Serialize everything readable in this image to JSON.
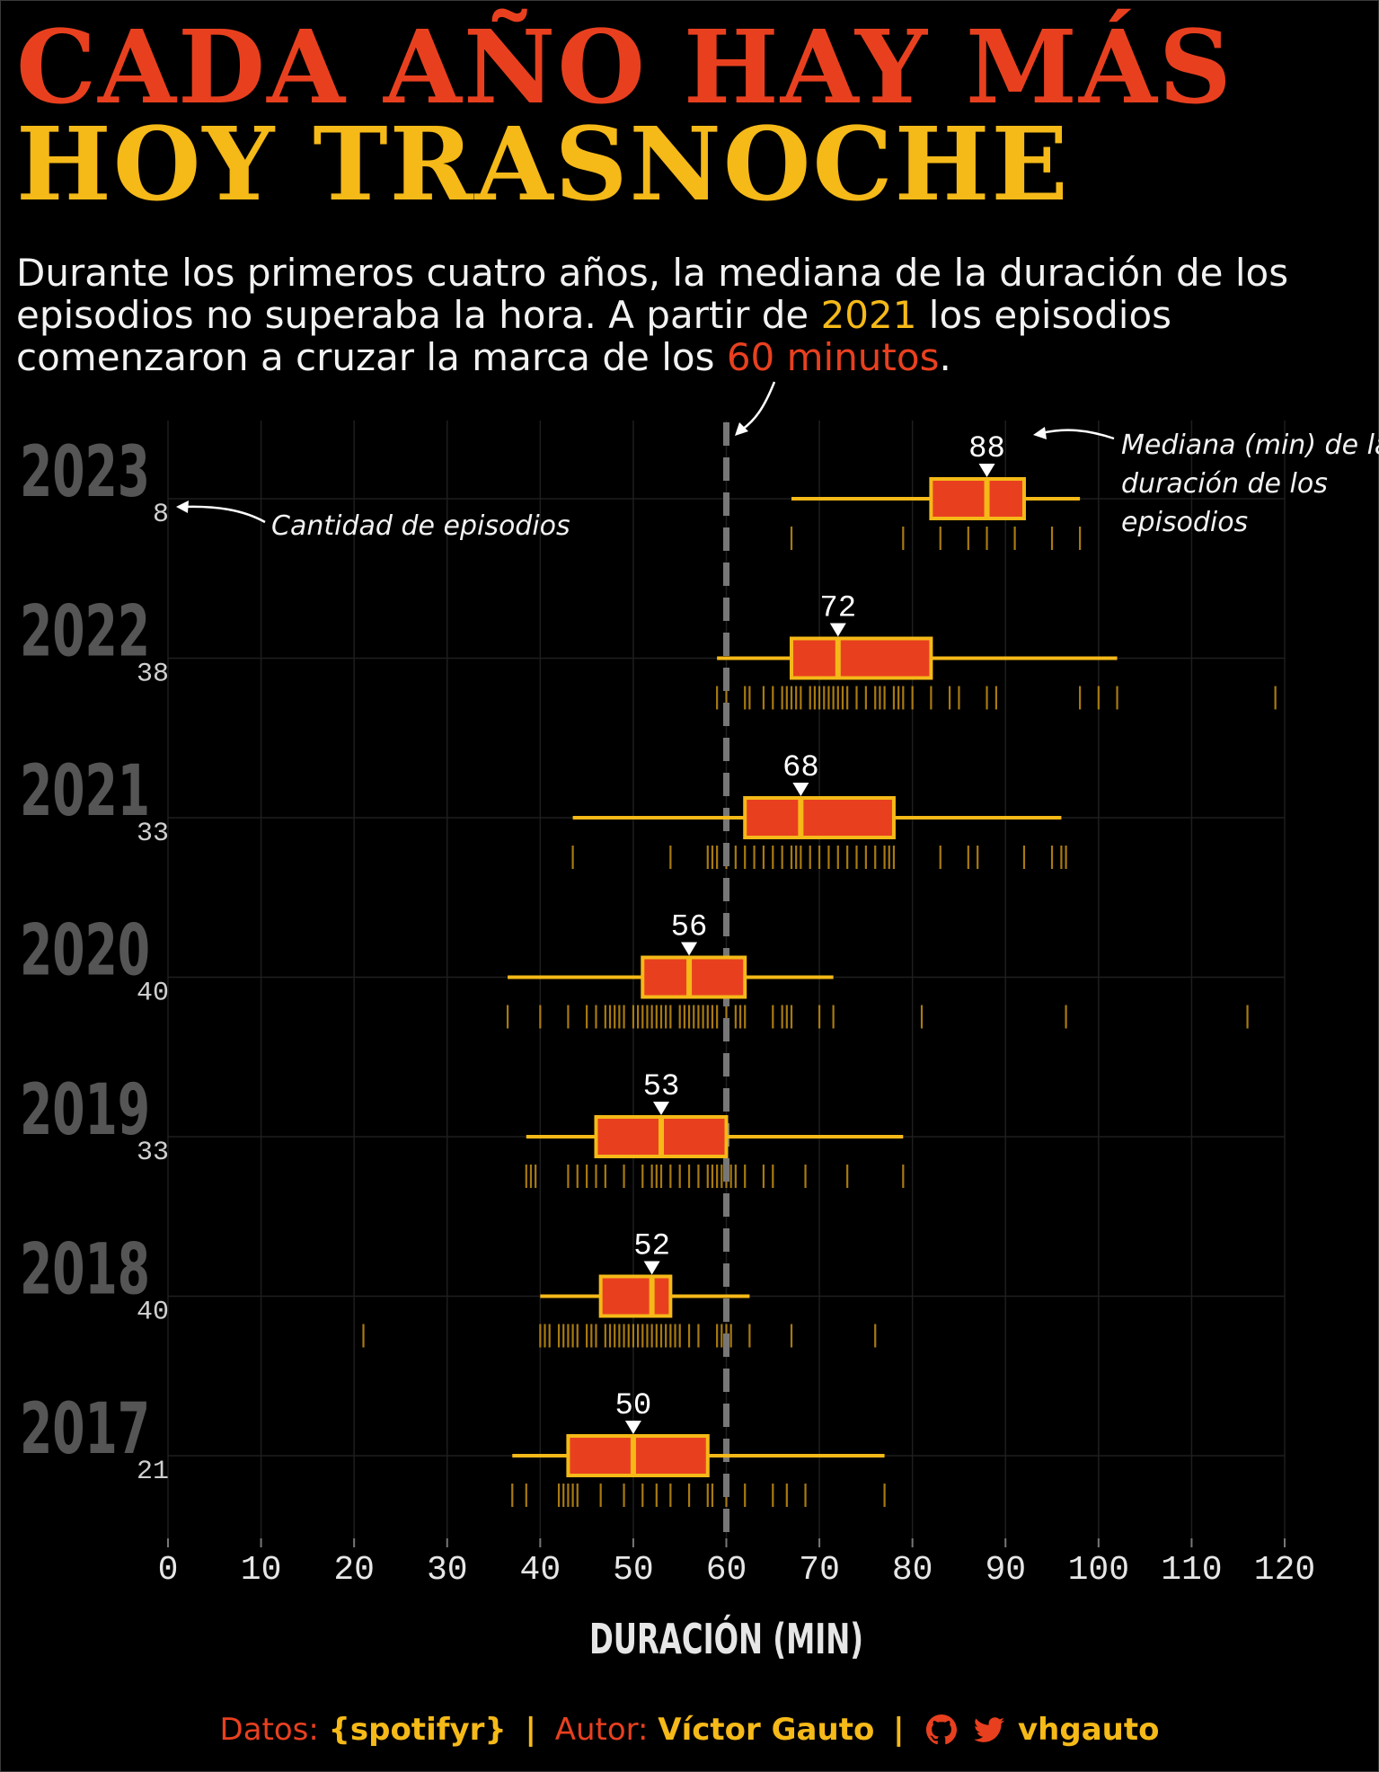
{
  "title": {
    "line1": "CADA AÑO HAY MÁS",
    "line2": "HOY TRASNOCHE",
    "line1_color": "#e8401f",
    "line2_color": "#f5b918"
  },
  "subtitle": {
    "part1": "Durante los primeros cuatro años, la mediana de la duración de los episodios no superaba la hora. A partir de ",
    "highlight_year": "2021",
    "part2": " los episodios comenzaron a cruzar la marca de los ",
    "highlight_minutes": "60 minutos",
    "part3": "."
  },
  "annotations": {
    "count": "Cantidad de episodios",
    "median_line1": "Mediana (min) de la",
    "median_line2": "duración de los",
    "median_line3": "episodios"
  },
  "caption": {
    "data_label": "Datos:",
    "data_value": "{spotifyr}",
    "author_label": "Autor:",
    "author_value": "Víctor Gauto",
    "handle": "vhgauto",
    "separator": "|",
    "icons": [
      "github-icon",
      "twitter-icon"
    ]
  },
  "colors": {
    "background": "#000000",
    "box_fill": "#e8401f",
    "box_stroke": "#f5b918",
    "year_label": "#555555",
    "reference_line": "#777777"
  },
  "chart_data": {
    "type": "boxplot",
    "xlabel": "DURACIÓN (MIN)",
    "xlim": [
      0,
      120
    ],
    "xticks": [
      "0",
      "10",
      "20",
      "30",
      "40",
      "50",
      "60",
      "70",
      "80",
      "90",
      "100",
      "110",
      "120"
    ],
    "reference_line_x": 60,
    "grid": true,
    "series": [
      {
        "year": "2023",
        "count": "8",
        "median": 88,
        "median_label": "88",
        "q1": 82,
        "q3": 92,
        "whisker_low": 67,
        "whisker_high": 98,
        "episodes": [
          67,
          79,
          83,
          86,
          88,
          91,
          95,
          98
        ]
      },
      {
        "year": "2022",
        "count": "38",
        "median": 72,
        "median_label": "72",
        "q1": 67,
        "q3": 82,
        "whisker_low": 59,
        "whisker_high": 102,
        "episodes": [
          59,
          60,
          62,
          62.5,
          64,
          65,
          66,
          66.5,
          67,
          67.5,
          68,
          69,
          69.5,
          70,
          70.5,
          71,
          71.5,
          72,
          72.5,
          73,
          74,
          75,
          76,
          76.5,
          77,
          78,
          78.5,
          79,
          80,
          82,
          84,
          85,
          88,
          89,
          98,
          100,
          102,
          119
        ]
      },
      {
        "year": "2021",
        "count": "33",
        "median": 68,
        "median_label": "68",
        "q1": 62,
        "q3": 78,
        "whisker_low": 43.5,
        "whisker_high": 96,
        "episodes": [
          43.5,
          54,
          58,
          58.5,
          59,
          60,
          61,
          62,
          63,
          64,
          65,
          66,
          67,
          67.5,
          68,
          69,
          70,
          71,
          72,
          73,
          74,
          75,
          76,
          77,
          77.5,
          78,
          83,
          86,
          87,
          92,
          95,
          96,
          96.5
        ]
      },
      {
        "year": "2020",
        "count": "40",
        "median": 56,
        "median_label": "56",
        "q1": 51,
        "q3": 62,
        "whisker_low": 36.5,
        "whisker_high": 71.5,
        "episodes": [
          36.5,
          40,
          43,
          45,
          46,
          47,
          47.5,
          48,
          48.5,
          49,
          50,
          50.5,
          51,
          51.5,
          52,
          52.5,
          53,
          53.5,
          54,
          55,
          55.5,
          56,
          56.5,
          57,
          57.5,
          58,
          58.5,
          59,
          60,
          61,
          61.5,
          62,
          65,
          66,
          66.5,
          67,
          70,
          71.5,
          81,
          96.5,
          116
        ]
      },
      {
        "year": "2019",
        "count": "33",
        "median": 53,
        "median_label": "53",
        "q1": 46,
        "q3": 60,
        "whisker_low": 38.5,
        "whisker_high": 79,
        "episodes": [
          38.5,
          39,
          39.5,
          43,
          44,
          45,
          46,
          47,
          49,
          51,
          52,
          52.5,
          53,
          54,
          55,
          56,
          57,
          58,
          58.5,
          59,
          59.5,
          60,
          60.5,
          61,
          62,
          64,
          65,
          68.5,
          73,
          79
        ]
      },
      {
        "year": "2018",
        "count": "40",
        "median": 52,
        "median_label": "52",
        "q1": 46.5,
        "q3": 54,
        "whisker_low": 40,
        "whisker_high": 62.5,
        "episodes": [
          21,
          40,
          40.5,
          41,
          42,
          42.5,
          43,
          43.5,
          44,
          45,
          45.5,
          46,
          47,
          47.5,
          48,
          48.5,
          49,
          49.5,
          50,
          50.5,
          51,
          51.5,
          52,
          52.5,
          53,
          53.5,
          54,
          54.5,
          55,
          56,
          57,
          59,
          59.5,
          60,
          60.5,
          62.5,
          67,
          76
        ]
      },
      {
        "year": "2017",
        "count": "21",
        "median": 50,
        "median_label": "50",
        "q1": 43,
        "q3": 58,
        "whisker_low": 37,
        "whisker_high": 77,
        "episodes": [
          37,
          38.5,
          42,
          42.5,
          43,
          43.5,
          44,
          46.5,
          49,
          51,
          52.5,
          54,
          56,
          58,
          58.5,
          60,
          62,
          65,
          66.5,
          68.5,
          77
        ]
      }
    ]
  }
}
